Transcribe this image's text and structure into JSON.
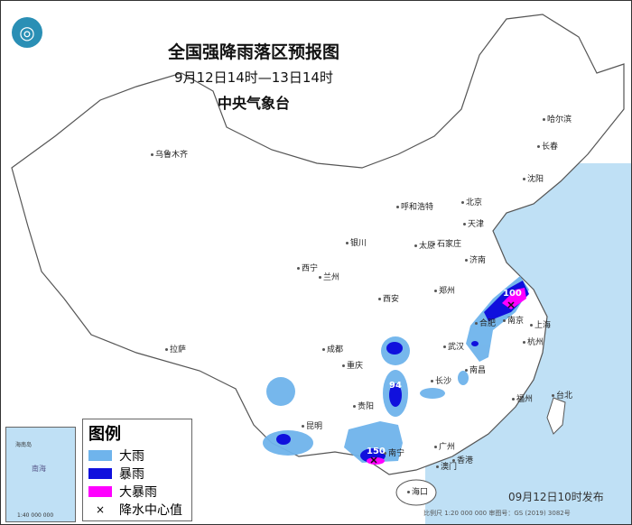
{
  "title": "全国强降雨落区预报图",
  "period": "9月12日14时—13日14时",
  "agency": "中央气象台",
  "issued": "09月12日10时发布",
  "scale_text": "比例尺 1:20 000 000    审图号：GS (2019) 3082号",
  "logo_icon": "cma-logo",
  "colors": {
    "sea": "#bfe0f5",
    "heavy_rain": "#6fb4ec",
    "rainstorm": "#1010dd",
    "heavy_rainstorm": "#ff00ff"
  },
  "legend": {
    "title": "图例",
    "items": [
      {
        "label": "大雨",
        "color": "#6fb4ec"
      },
      {
        "label": "暴雨",
        "color": "#1010dd"
      },
      {
        "label": "大暴雨",
        "color": "#ff00ff"
      },
      {
        "label": "降水中心值",
        "symbol": "×"
      }
    ]
  },
  "inset": {
    "sea_label": "南海",
    "islands": "海南岛",
    "scale": "1:40 000 000"
  },
  "cities": [
    "乌鲁木齐",
    "哈尔滨",
    "长春",
    "沈阳",
    "北京",
    "天津",
    "呼和浩特",
    "银川",
    "太原",
    "石家庄",
    "济南",
    "西宁",
    "兰州",
    "郑州",
    "西安",
    "合肥",
    "南京",
    "上海",
    "拉萨",
    "成都",
    "武汉",
    "杭州",
    "重庆",
    "长沙",
    "南昌",
    "福州",
    "台北",
    "贵阳",
    "昆明",
    "南宁",
    "广州",
    "香港",
    "澳门",
    "海口"
  ],
  "rain_centers": [
    {
      "value": "100",
      "near": "南京"
    },
    {
      "value": "94",
      "near": "贵州东部"
    },
    {
      "value": "150",
      "near": "南宁"
    }
  ]
}
